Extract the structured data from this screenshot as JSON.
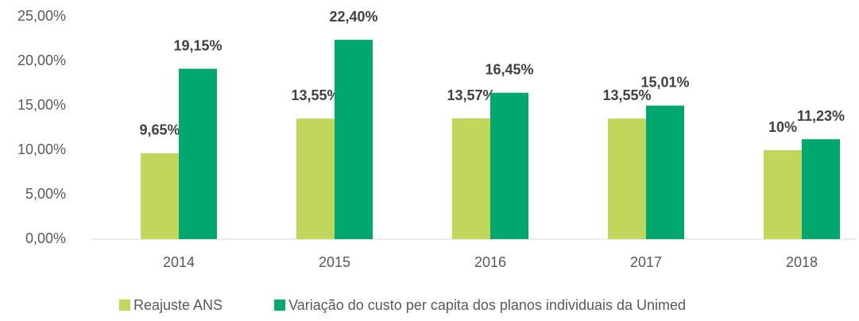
{
  "chart_data": {
    "type": "bar",
    "categories": [
      "2014",
      "2015",
      "2016",
      "2017",
      "2018"
    ],
    "series": [
      {
        "name": "Reajuste ANS",
        "color": "#c0d75b",
        "values": [
          9.65,
          13.55,
          13.57,
          13.55,
          10
        ],
        "value_labels": [
          "9,65%",
          "13,55%",
          "13,57%",
          "13,55%",
          "10%"
        ]
      },
      {
        "name": "Variação do custo per capita dos planos individuais da Unimed",
        "color": "#00a76f",
        "values": [
          19.15,
          22.4,
          16.45,
          15.01,
          11.23
        ],
        "value_labels": [
          "19,15%",
          "22,40%",
          "16,45%",
          "15,01%",
          "11,23%"
        ]
      }
    ],
    "ylim": [
      0,
      25
    ],
    "yticks": [
      {
        "value": 0,
        "label": "0,00%"
      },
      {
        "value": 5,
        "label": "5,00%"
      },
      {
        "value": 10,
        "label": "10,00%"
      },
      {
        "value": 15,
        "label": "15,00%"
      },
      {
        "value": 20,
        "label": "20,00%"
      },
      {
        "value": 25,
        "label": "25,00%"
      }
    ],
    "grid": false,
    "legend": "bottom"
  }
}
